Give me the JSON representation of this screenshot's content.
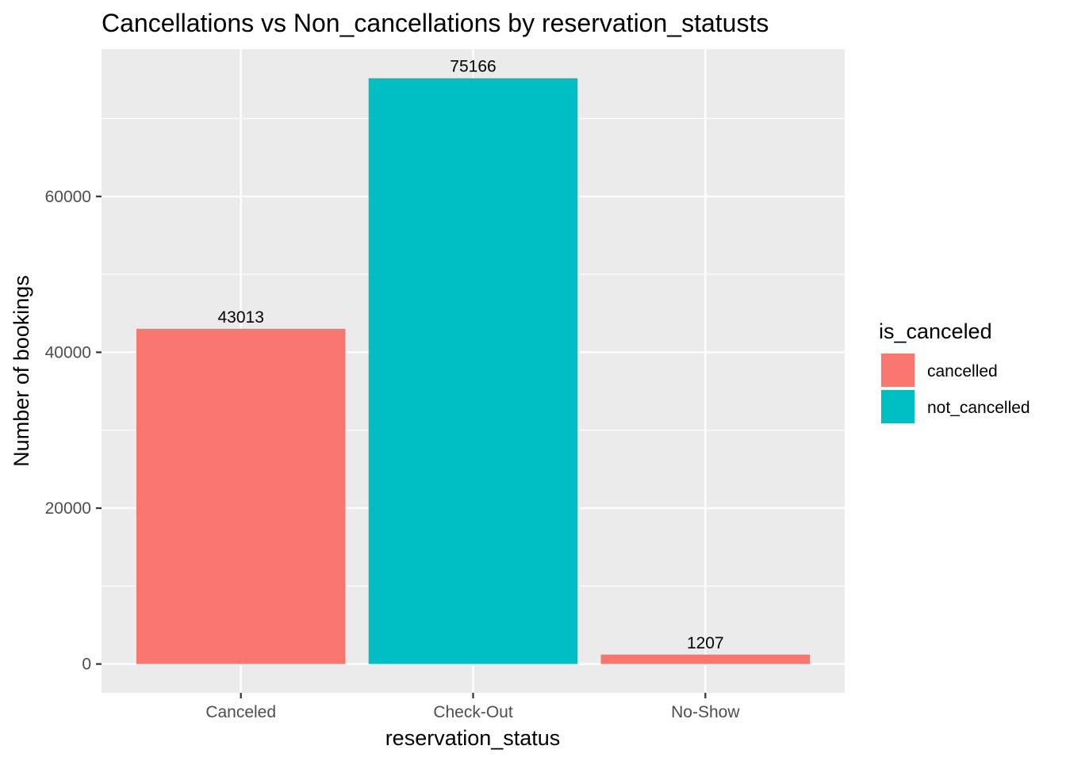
{
  "chart_data": {
    "type": "bar",
    "title": "Cancellations vs Non_cancellations by reservation_statusts",
    "xlabel": "reservation_status",
    "ylabel": "Number of bookings",
    "categories": [
      "Canceled",
      "Check-Out",
      "No-Show"
    ],
    "values": [
      43013,
      75166,
      1207
    ],
    "data_labels": [
      "43013",
      "75166",
      "1207"
    ],
    "bar_groups": [
      "cancelled",
      "not_cancelled",
      "cancelled"
    ],
    "yticks": [
      0,
      20000,
      40000,
      60000
    ],
    "ytick_labels": [
      "0",
      "20000",
      "40000",
      "60000"
    ],
    "ylim": [
      -3700,
      78900
    ],
    "grid": true,
    "legend": {
      "title": "is_canceled",
      "position": "right",
      "entries": [
        {
          "label": "cancelled",
          "color": "#F8766D"
        },
        {
          "label": "not_cancelled",
          "color": "#00BFC4"
        }
      ]
    },
    "colors": {
      "cancelled": "#F8766D",
      "not_cancelled": "#00BFC4",
      "panel_background": "#EBEBEB",
      "grid": "#FFFFFF"
    }
  }
}
